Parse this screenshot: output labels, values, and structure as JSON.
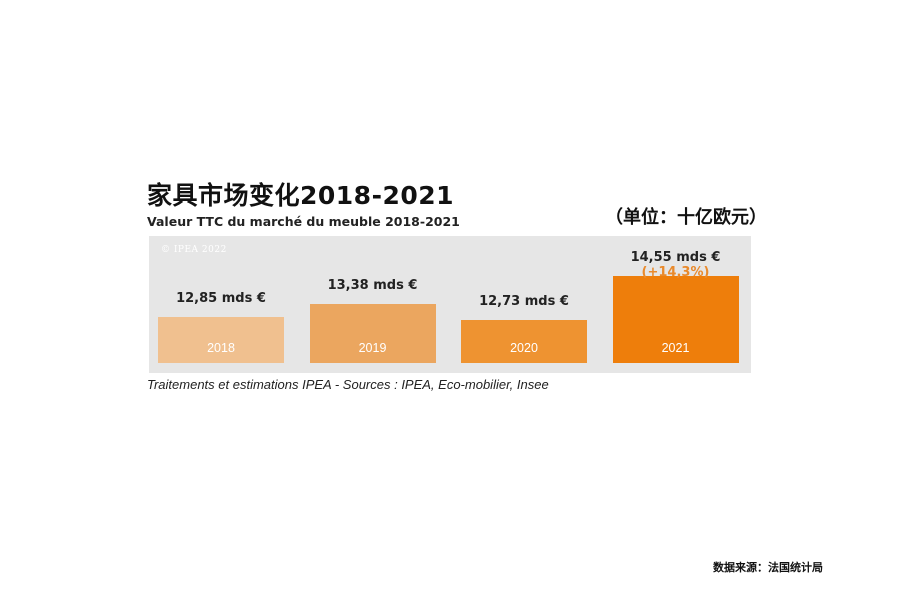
{
  "title": "家具市场变化2018-2021",
  "subtitle": "Valeur TTC du marché du meuble 2018-2021",
  "unit_note": "（单位：十亿欧元）",
  "watermark": "© IPEA 2022",
  "source_note": "Traitements et estimations IPEA - Sources : IPEA, Eco-mobilier, Insee",
  "credit": "数据来源：法国统计局",
  "chart_data": {
    "type": "bar",
    "title": "家具市场变化2018-2021",
    "subtitle": "Valeur TTC du marché du meuble 2018-2021",
    "categories": [
      "2018",
      "2019",
      "2020",
      "2021"
    ],
    "values": [
      12.85,
      13.38,
      12.73,
      14.55
    ],
    "value_labels": [
      "12,85 mds €",
      "13,38 mds €",
      "12,73 mds €",
      "14,55 mds €"
    ],
    "annotations": [
      "",
      "",
      "",
      "(+14,3%)"
    ],
    "colors": [
      "#f0c08f",
      "#eba65f",
      "#ee9331",
      "#ee7e0b"
    ],
    "annotation_color": "#e98a2c",
    "legend": "none",
    "grid": false,
    "axes_visible": false
  }
}
